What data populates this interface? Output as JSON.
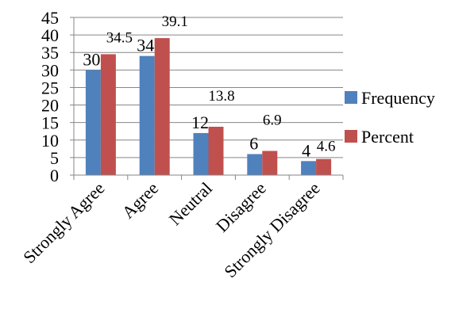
{
  "chart_data": {
    "type": "bar",
    "categories": [
      "Strongly Agree",
      "Agree",
      "Neutral",
      "Disagree",
      "Strongly Disagree"
    ],
    "series": [
      {
        "name": "Frequency",
        "values": [
          30,
          34,
          12,
          6,
          4
        ],
        "color": "#4F81BD"
      },
      {
        "name": "Percent",
        "values": [
          34.5,
          39.1,
          13.8,
          6.9,
          4.6
        ],
        "color": "#C0504D"
      }
    ],
    "ylim": [
      0,
      45
    ],
    "yticks": [
      0,
      5,
      10,
      15,
      20,
      25,
      30,
      35,
      40,
      45
    ],
    "grid": true,
    "legend": "right",
    "title": "",
    "xlabel": "",
    "ylabel": ""
  }
}
